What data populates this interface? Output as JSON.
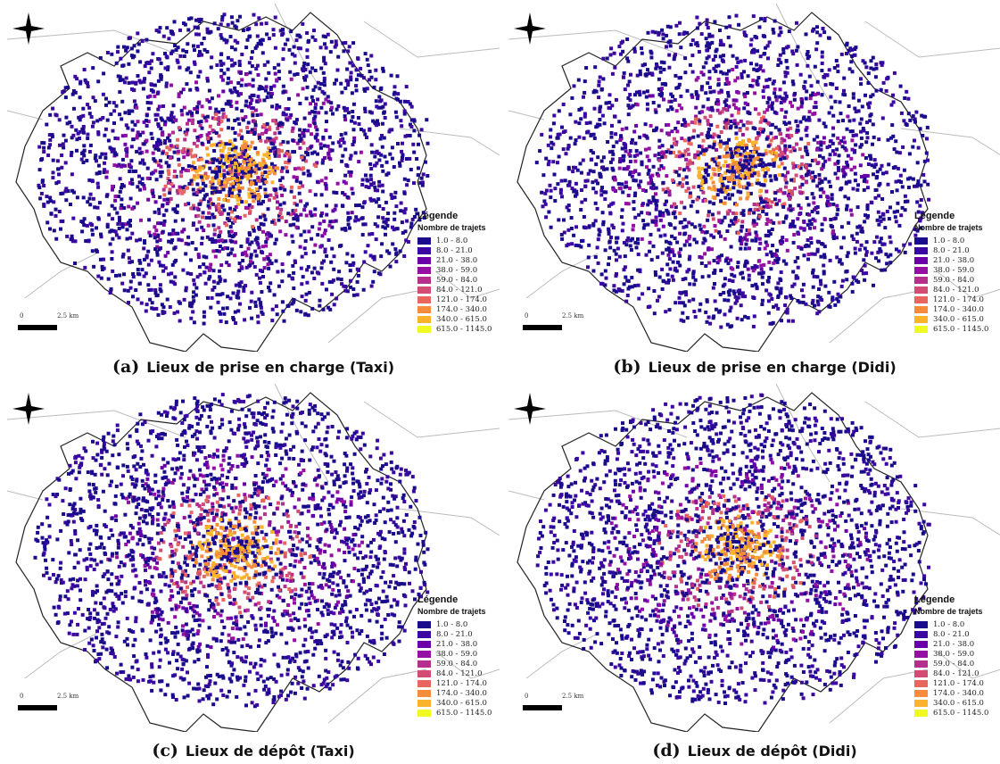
{
  "legend": {
    "title": "Légende",
    "subtitle": "Nombre de trajets",
    "classes": [
      {
        "label": "1.0 - 8.0",
        "color": "#1a0a8c"
      },
      {
        "label": "8.0 - 21.0",
        "color": "#3a08a0"
      },
      {
        "label": "21.0 - 38.0",
        "color": "#6a00a8"
      },
      {
        "label": "38.0 - 59.0",
        "color": "#9410a2"
      },
      {
        "label": "59.0 - 84.0",
        "color": "#b52f8c"
      },
      {
        "label": "84.0 - 121.0",
        "color": "#d24d74"
      },
      {
        "label": "121.0 - 174.0",
        "color": "#e7665e"
      },
      {
        "label": "174.0 - 340.0",
        "color": "#f58b3c"
      },
      {
        "label": "340.0 - 615.0",
        "color": "#fbb32b"
      },
      {
        "label": "615.0 - 1145.0",
        "color": "#f0f921"
      }
    ]
  },
  "scale": {
    "zero": "0",
    "distance": "2.5 km"
  },
  "panels": [
    {
      "letter": "(a)",
      "caption": "Lieux de prise en charge (Taxi)"
    },
    {
      "letter": "(b)",
      "caption": "Lieux de prise en charge (Didi)"
    },
    {
      "letter": "(c)",
      "caption": "Lieux de dépôt (Taxi)"
    },
    {
      "letter": "(d)",
      "caption": "Lieux de dépôt (Didi)"
    }
  ]
}
